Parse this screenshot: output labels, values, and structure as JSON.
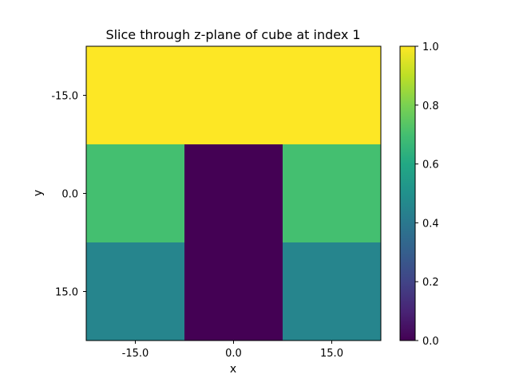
{
  "chart_data": {
    "type": "heatmap",
    "title": "Slice through z-plane of cube at index 1",
    "xlabel": "x",
    "ylabel": "y",
    "x_centers": [
      -15.0,
      0.0,
      15.0
    ],
    "y_centers": [
      -15.0,
      0.0,
      15.0
    ],
    "x_tick_labels": [
      "-15.0",
      "0.0",
      "15.0"
    ],
    "y_tick_labels": [
      "-15.0",
      "0.0",
      "15.0"
    ],
    "y_axis_inverted": true,
    "values": [
      [
        1.0,
        1.0,
        1.0
      ],
      [
        0.7,
        0.0,
        0.7
      ],
      [
        0.45,
        0.0,
        0.45
      ]
    ],
    "colormap": "viridis",
    "colorbar": {
      "vmin": 0.0,
      "vmax": 1.0,
      "ticks": [
        0.0,
        0.2,
        0.4,
        0.6,
        0.8,
        1.0
      ],
      "tick_labels": [
        "0.0",
        "0.2",
        "0.4",
        "0.6",
        "0.8",
        "1.0"
      ]
    }
  }
}
